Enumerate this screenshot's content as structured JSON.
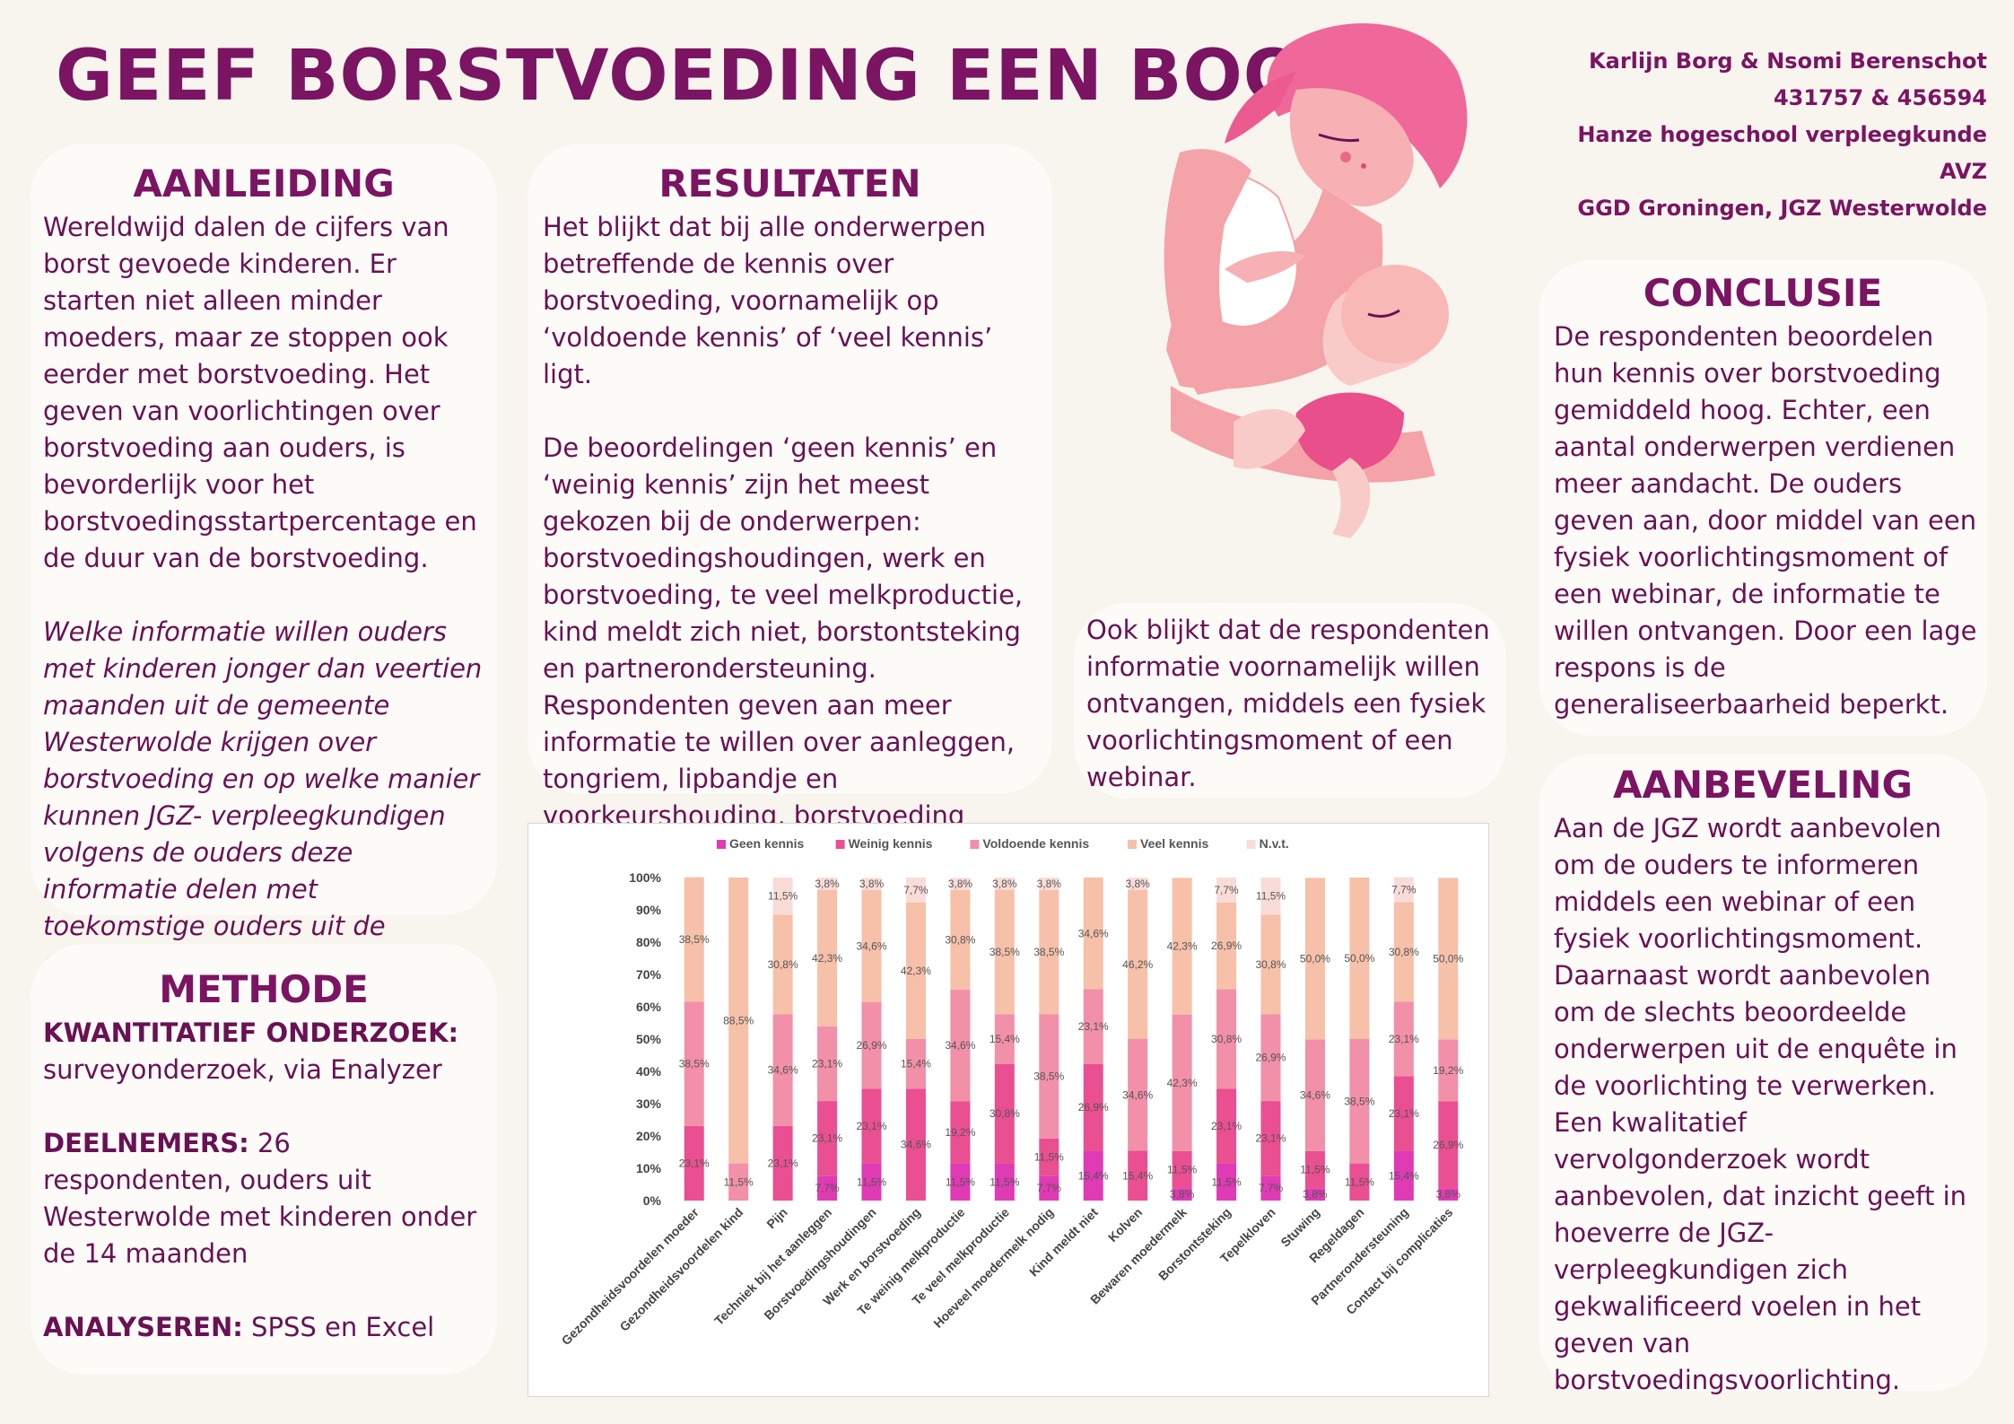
{
  "title": "GEEF BORSTVOEDING EEN BOOST",
  "authors": [
    "Karlijn Borg & Nsomi Berenschot",
    "431757 & 456594",
    "Hanze hogeschool verpleegkunde",
    "AVZ",
    "GGD Groningen, JGZ Westerwolde"
  ],
  "aanleiding": {
    "heading": "AANLEIDING",
    "text": "Wereldwijd dalen de cijfers van borst gevoede kinderen. Er starten niet alleen minder moeders, maar ze stoppen ook eerder met borstvoeding. Het geven van voorlichtingen over borstvoeding aan ouders, is bevorderlijk voor het borstvoedingsstartpercentage en de duur van de borstvoeding.",
    "question": "Welke informatie willen ouders met kinderen jonger dan veertien maanden uit de gemeente Westerwolde krijgen over borstvoeding en op welke manier kunnen JGZ- verpleegkundigen volgens de ouders deze informatie delen met toekomstige ouders uit de gemeente Westerwolde?"
  },
  "methode": {
    "heading": "METHODE",
    "type_label": "KWANTITATIEF ONDERZOEK:",
    "type_text": "surveyonderzoek, via Enalyzer",
    "deelnemers_label": "DEELNEMERS:",
    "deelnemers_text": " 26 respondenten, ouders uit Westerwolde met kinderen onder de 14 maanden",
    "analyse_label": "ANALYSEREN:",
    "analyse_text": " SPSS en Excel"
  },
  "resultaten": {
    "heading": "RESULTATEN",
    "p1": "Het blijkt dat bij alle onderwerpen betreffende de kennis over borstvoeding, voornamelijk op ‘voldoende kennis’ of ‘veel kennis’ ligt.",
    "p2": "De beoordelingen ‘geen kennis’ en ‘weinig kennis’ zijn het meest gekozen bij de onderwerpen: borstvoedingshoudingen, werk en borstvoeding, te veel melkproductie, kind meldt zich niet, borstontsteking en partnerondersteuning. Respondenten geven aan meer informatie te willen over aanleggen, tongriem, lipbandje en voorkeurshouding, borstvoeding combineren met werk en kolven."
  },
  "ook": {
    "text": "Ook blijkt dat de respondenten informatie voornamelijk willen ontvangen, middels een fysiek voorlichtingsmoment of een webinar."
  },
  "conclusie": {
    "heading": "CONCLUSIE",
    "text": "De respondenten beoordelen hun kennis over borstvoeding gemiddeld hoog. Echter, een aantal onderwerpen verdienen meer aandacht. De ouders geven aan, door middel van een fysiek voorlichtingsmoment of een webinar, de informatie te willen ontvangen. Door een lage respons is de  generaliseerbaarheid beperkt."
  },
  "aanbeveling": {
    "heading": "AANBEVELING",
    "text": "Aan de JGZ wordt aanbevolen om de ouders te informeren middels een webinar of een fysiek voorlichtingsmoment. Daarnaast wordt aanbevolen om de slechts beoordeelde onderwerpen uit de enquête in de voorlichting te verwerken. Een kwalitatief vervolgonderzoek wordt aanbevolen, dat inzicht geeft in hoeverre de JGZ-verpleegkundigen zich gekwalificeerd voelen in het geven van borstvoedingsvoorlichting."
  },
  "colors": {
    "accent": "#7b1462",
    "background": "#f8f4ee",
    "card": "#fdfbf8"
  },
  "chart_data": {
    "type": "bar",
    "stacked": true,
    "legend_position": "top",
    "ylim": [
      0,
      100
    ],
    "yticks": [
      "0%",
      "10%",
      "20%",
      "30%",
      "40%",
      "50%",
      "60%",
      "70%",
      "80%",
      "90%",
      "100%"
    ],
    "categories": [
      "Gezondheidsvoordelen moeder",
      "Gezondheidsvoordelen kind",
      "Pijn",
      "Techniek bij het aanleggen",
      "Borstvoedingshoudingen",
      "Werk en borstvoeding",
      "Te weinig melkproductie",
      "Te veel melkproductie",
      "Hoeveel moedermelk nodig",
      "Kind meldt niet",
      "Kolven",
      "Bewaren moedermelk",
      "Borstontsteking",
      "Tepelkloven",
      "Stuwing",
      "Regeldagen",
      "Partnerondersteuning",
      "Contact bij complicaties"
    ],
    "series": [
      {
        "name": "Geen kennis",
        "color": "#e03ab4",
        "values": [
          0,
          0,
          0,
          7.7,
          11.5,
          0,
          11.5,
          11.5,
          7.7,
          15.4,
          0,
          3.8,
          11.5,
          7.7,
          3.8,
          0,
          15.4,
          3.8
        ]
      },
      {
        "name": "Weinig kennis",
        "color": "#ea4f91",
        "values": [
          23.1,
          0,
          23.1,
          23.1,
          23.1,
          34.6,
          19.2,
          30.8,
          11.5,
          26.9,
          15.4,
          11.5,
          23.1,
          23.1,
          11.5,
          11.5,
          23.1,
          26.9
        ]
      },
      {
        "name": "Voldoende kennis",
        "color": "#f28fa9",
        "values": [
          38.5,
          11.5,
          34.6,
          23.1,
          26.9,
          15.4,
          34.6,
          15.4,
          38.5,
          23.1,
          34.6,
          42.3,
          30.8,
          26.9,
          34.6,
          38.5,
          23.1,
          19.2
        ]
      },
      {
        "name": "Veel kennis",
        "color": "#f6c0a9",
        "values": [
          38.5,
          88.5,
          30.8,
          42.3,
          34.6,
          42.3,
          30.8,
          38.5,
          38.5,
          34.6,
          46.2,
          42.3,
          26.9,
          30.8,
          50.0,
          50.0,
          30.8,
          50.0
        ]
      },
      {
        "name": "N.v.t.",
        "color": "#f9dcd8",
        "values": [
          0,
          0,
          11.5,
          3.8,
          3.8,
          7.7,
          3.8,
          3.8,
          3.8,
          0,
          3.8,
          0,
          7.7,
          11.5,
          0,
          0,
          7.7,
          0
        ]
      }
    ]
  }
}
